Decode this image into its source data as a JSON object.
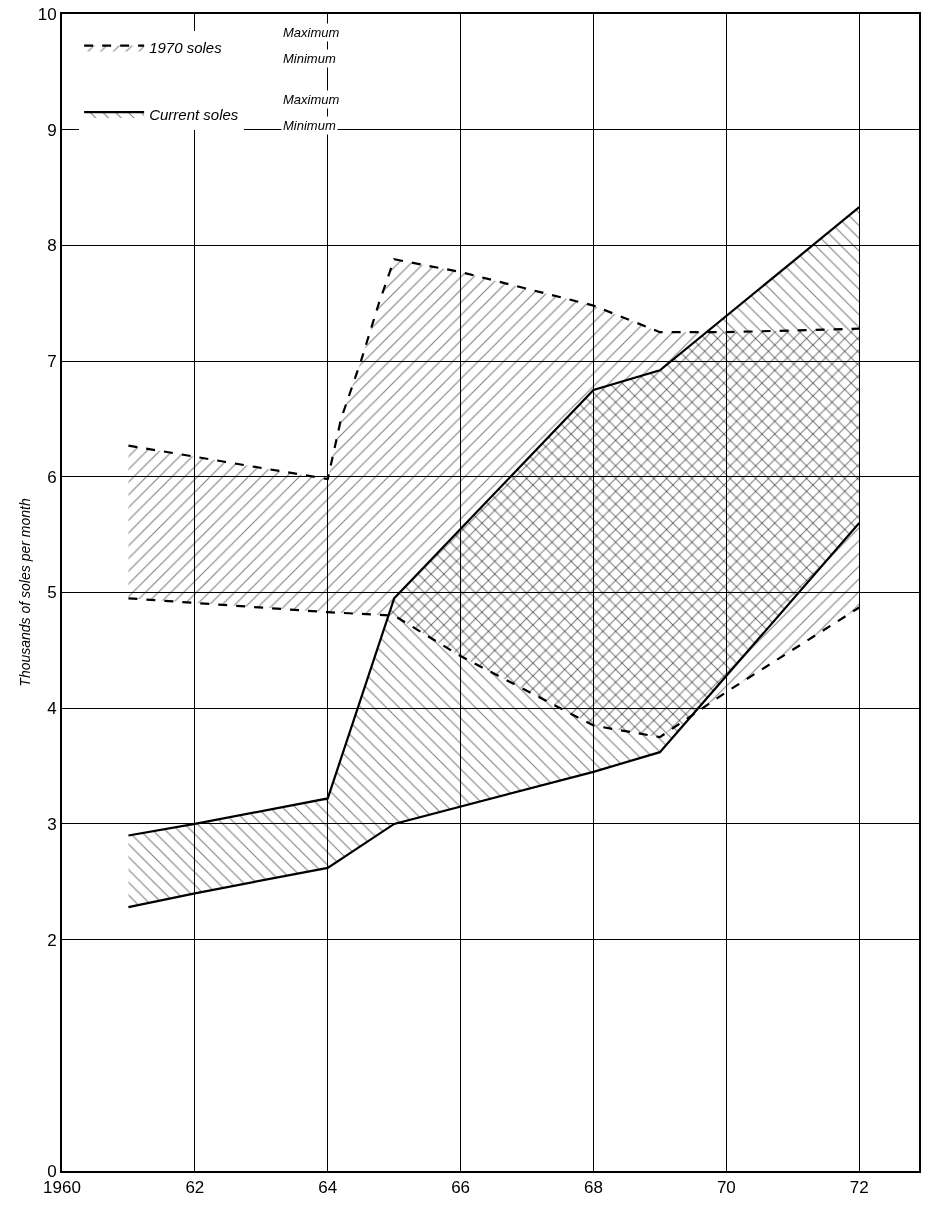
{
  "chart_data": {
    "type": "area",
    "ylabel": "Thousands of soles per month",
    "legend": "top left",
    "grid": true,
    "xlim": [
      1960,
      1972.9
    ],
    "xticks": [
      {
        "value": 1960,
        "label": "1960"
      },
      {
        "value": 1962,
        "label": "62"
      },
      {
        "value": 1964,
        "label": "64"
      },
      {
        "value": 1966,
        "label": "66"
      },
      {
        "value": 1968,
        "label": "68"
      },
      {
        "value": 1970,
        "label": "70"
      },
      {
        "value": 1972,
        "label": "72"
      }
    ],
    "ylim": [
      0,
      10
    ],
    "yticks": [
      0,
      2,
      3,
      4,
      5,
      6,
      7,
      8,
      9,
      10
    ],
    "annotations": [
      "Maximum",
      "Minimum"
    ],
    "series": [
      {
        "type": "line",
        "color": "#000000",
        "line_style": "dashed",
        "x": [
          1961,
          1964,
          1965,
          1966,
          1968,
          1969,
          1970,
          1972
        ],
        "values": [
          4.95,
          4.83,
          4.8,
          4.45,
          3.85,
          3.75,
          4.14,
          4.87
        ]
      },
      {
        "name": "1970 soles",
        "color": "#000000",
        "line_style": "dashed",
        "x": [
          1961,
          1964,
          1964.2,
          1964.5,
          1964.77,
          1965,
          1966,
          1968,
          1969,
          1970,
          1972
        ],
        "values": [
          6.27,
          5.98,
          6.5,
          7.0,
          7.5,
          7.88,
          7.77,
          7.48,
          7.25,
          7.25,
          7.28
        ]
      },
      {
        "type": "line",
        "color": "#000000",
        "line_style": "solid",
        "x": [
          1961,
          1962,
          1964,
          1965,
          1968,
          1969,
          1972
        ],
        "values": [
          2.28,
          2.4,
          2.62,
          3.0,
          3.45,
          3.62,
          5.6
        ]
      },
      {
        "name": "Current soles",
        "color": "#000000",
        "line_style": "solid",
        "x": [
          1961,
          1962,
          1964,
          1965,
          1968,
          1969,
          1972
        ],
        "values": [
          2.9,
          3.0,
          3.22,
          4.95,
          6.75,
          6.92,
          8.33
        ]
      }
    ]
  }
}
